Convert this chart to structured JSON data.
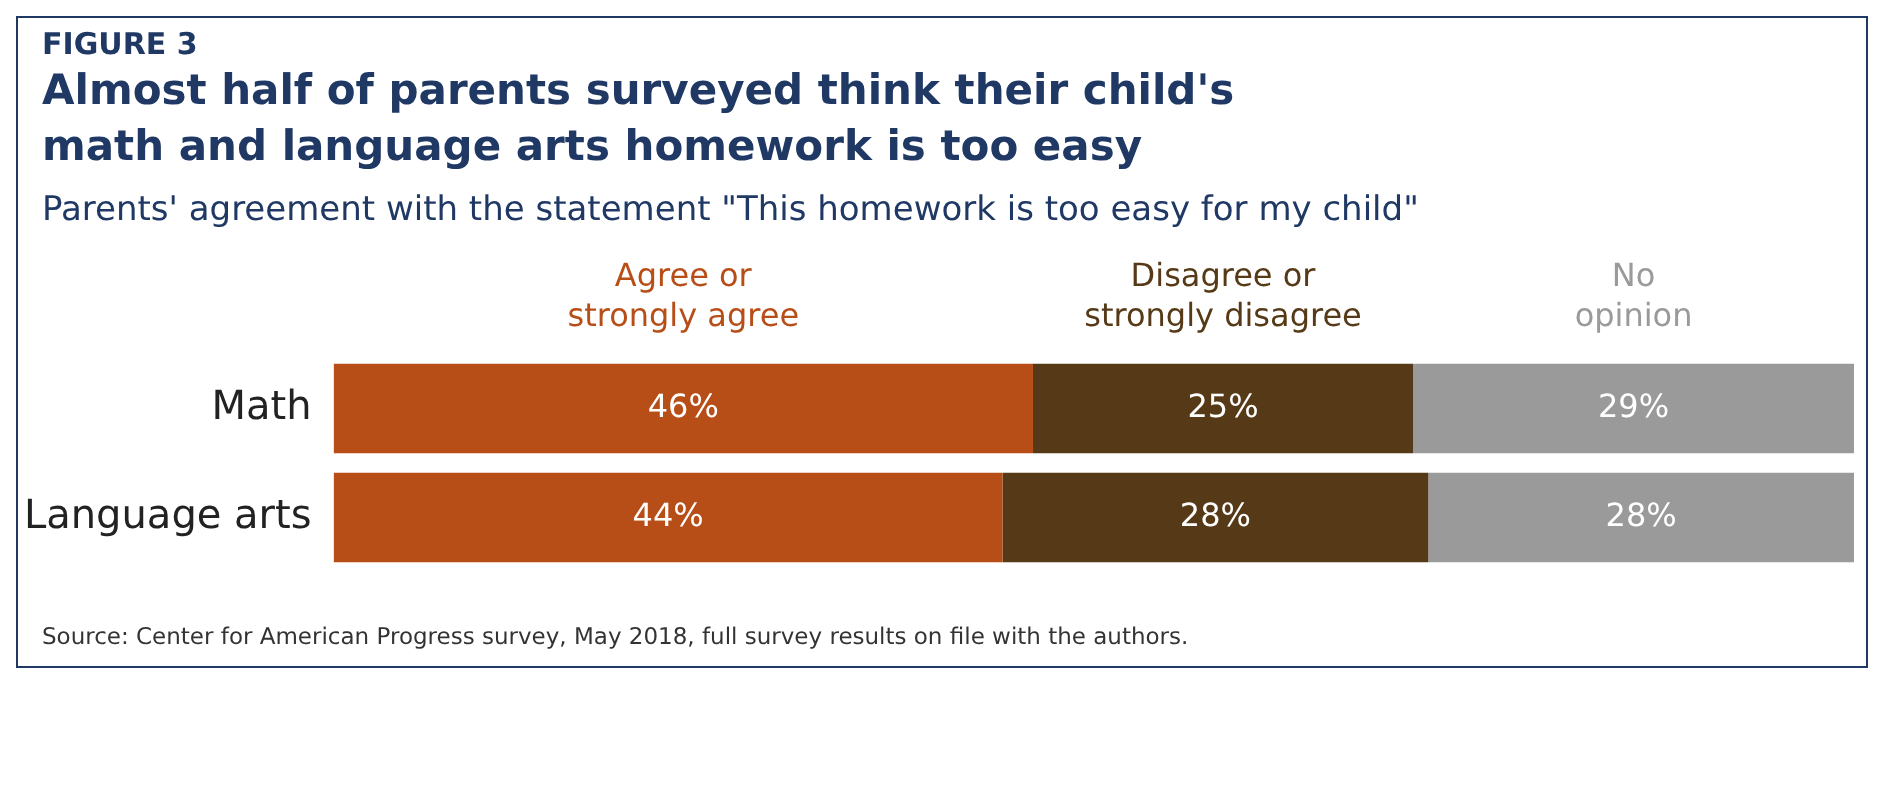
{
  "chart_data": {
    "type": "bar",
    "orientation": "horizontal",
    "stacked": true,
    "title": "Almost half of parents surveyed think their child's math and language arts homework is too easy",
    "subtitle": "Parents' agreement with the statement \"This homework is too easy for my child\"",
    "annotations": [
      "FIGURE 3",
      "Source: Center for American Progress survey, May 2018, full survey results on file with the authors."
    ],
    "categories": [
      "Math",
      "Language arts"
    ],
    "tick_labels": "y",
    "grid": false,
    "legend": "top",
    "series": [
      {
        "name": "Agree or strongly agree",
        "color": "#b84e17",
        "values": [
          46,
          44
        ],
        "value_labels": [
          "46%",
          "44%"
        ]
      },
      {
        "name": "Disagree or strongly disagree",
        "color": "#563a17",
        "values": [
          25,
          28
        ],
        "value_labels": [
          "25%",
          "28%"
        ]
      },
      {
        "name": "No opinion",
        "color": "#9a9a9a",
        "values": [
          29,
          28
        ],
        "value_labels": [
          "29%",
          "28%"
        ]
      }
    ]
  }
}
